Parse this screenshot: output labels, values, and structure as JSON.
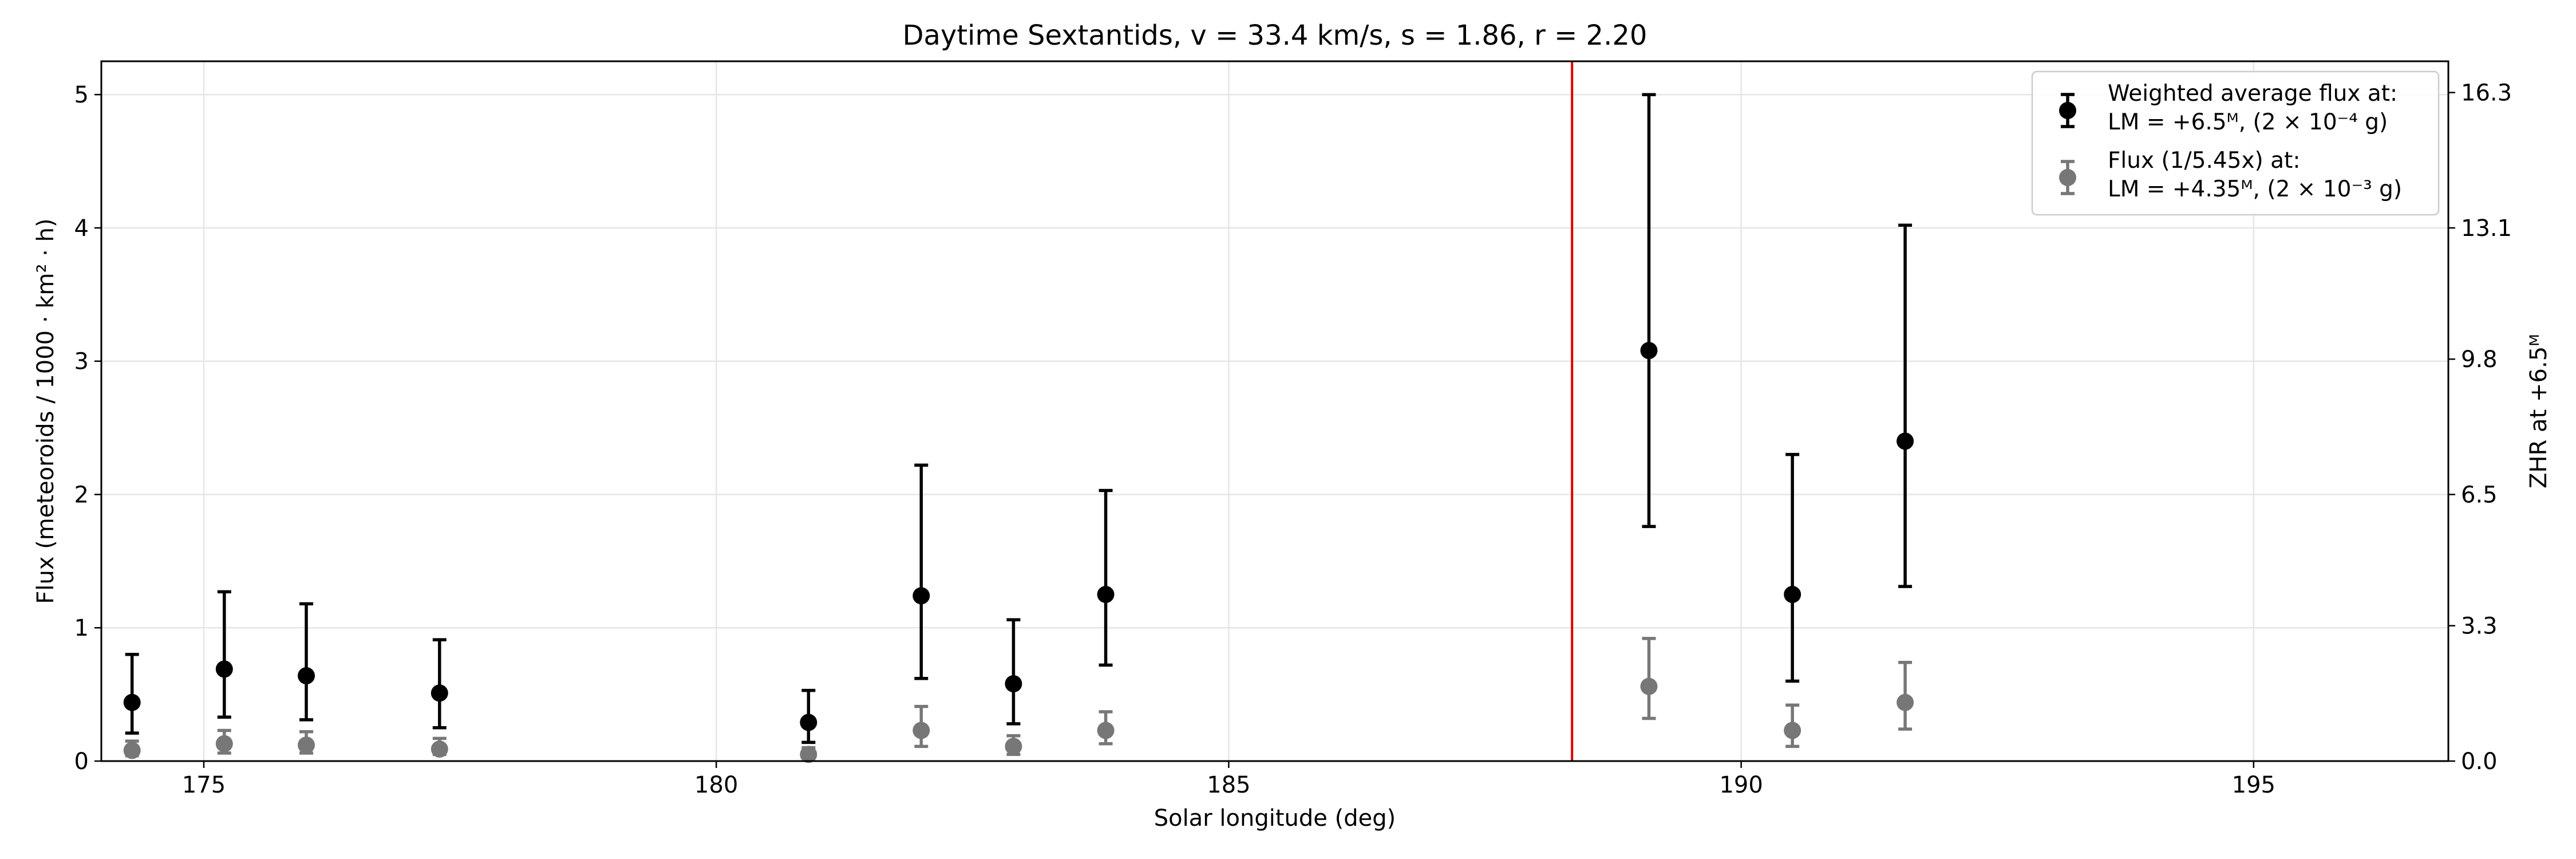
{
  "chart_data": {
    "type": "scatter",
    "title": "Daytime Sextantids, v = 33.4 km/s, s = 1.86, r = 2.20",
    "xlabel": "Solar longitude (deg)",
    "ylabel": "Flux (meteoroids / 1000 · km² · h)",
    "y2label": "ZHR at +6.5ᴹ",
    "xlim": [
      174.0,
      196.9
    ],
    "ylim": [
      0,
      5.25
    ],
    "xticks": [
      175,
      180,
      185,
      190,
      195
    ],
    "yticks": [
      0,
      1,
      2,
      3,
      4,
      5
    ],
    "y2_ticks": [
      {
        "y": 0.0,
        "label": "0.0"
      },
      {
        "y": 1.0154,
        "label": "3.3"
      },
      {
        "y": 2.0,
        "label": "6.5"
      },
      {
        "y": 3.0154,
        "label": "9.8"
      },
      {
        "y": 4.0,
        "label": "13.1"
      },
      {
        "y": 5.0154,
        "label": "16.3"
      }
    ],
    "grid": true,
    "legend_position": "top-right",
    "vline": {
      "x": 188.35,
      "color": "#dd0000"
    },
    "series": [
      {
        "name": "Weighted average flux at:",
        "name_line2": "LM = +6.5ᴹ, (2 × 10⁻⁴ g)",
        "color": "#000000",
        "points": [
          {
            "x": 174.3,
            "y": 0.44,
            "lo": 0.21,
            "hi": 0.8
          },
          {
            "x": 175.2,
            "y": 0.69,
            "lo": 0.33,
            "hi": 1.27
          },
          {
            "x": 176.0,
            "y": 0.64,
            "lo": 0.31,
            "hi": 1.18
          },
          {
            "x": 177.3,
            "y": 0.51,
            "lo": 0.25,
            "hi": 0.91
          },
          {
            "x": 180.9,
            "y": 0.29,
            "lo": 0.14,
            "hi": 0.53
          },
          {
            "x": 182.0,
            "y": 1.24,
            "lo": 0.62,
            "hi": 2.22
          },
          {
            "x": 182.9,
            "y": 0.58,
            "lo": 0.28,
            "hi": 1.06
          },
          {
            "x": 183.8,
            "y": 1.25,
            "lo": 0.72,
            "hi": 2.03
          },
          {
            "x": 189.1,
            "y": 3.08,
            "lo": 1.76,
            "hi": 5.0
          },
          {
            "x": 190.5,
            "y": 1.25,
            "lo": 0.6,
            "hi": 2.3
          },
          {
            "x": 191.6,
            "y": 2.4,
            "lo": 1.31,
            "hi": 4.02
          }
        ]
      },
      {
        "name": "Flux (1/5.45x) at:",
        "name_line2": "LM = +4.35ᴹ, (2 × 10⁻³ g)",
        "color": "#777777",
        "points": [
          {
            "x": 174.3,
            "y": 0.08,
            "lo": 0.04,
            "hi": 0.15
          },
          {
            "x": 175.2,
            "y": 0.13,
            "lo": 0.06,
            "hi": 0.23
          },
          {
            "x": 176.0,
            "y": 0.12,
            "lo": 0.06,
            "hi": 0.22
          },
          {
            "x": 177.3,
            "y": 0.09,
            "lo": 0.05,
            "hi": 0.17
          },
          {
            "x": 180.9,
            "y": 0.05,
            "lo": 0.03,
            "hi": 0.1
          },
          {
            "x": 182.0,
            "y": 0.23,
            "lo": 0.11,
            "hi": 0.41
          },
          {
            "x": 182.9,
            "y": 0.11,
            "lo": 0.05,
            "hi": 0.19
          },
          {
            "x": 183.8,
            "y": 0.23,
            "lo": 0.13,
            "hi": 0.37
          },
          {
            "x": 189.1,
            "y": 0.56,
            "lo": 0.32,
            "hi": 0.92
          },
          {
            "x": 190.5,
            "y": 0.23,
            "lo": 0.11,
            "hi": 0.42
          },
          {
            "x": 191.6,
            "y": 0.44,
            "lo": 0.24,
            "hi": 0.74
          }
        ]
      }
    ]
  }
}
